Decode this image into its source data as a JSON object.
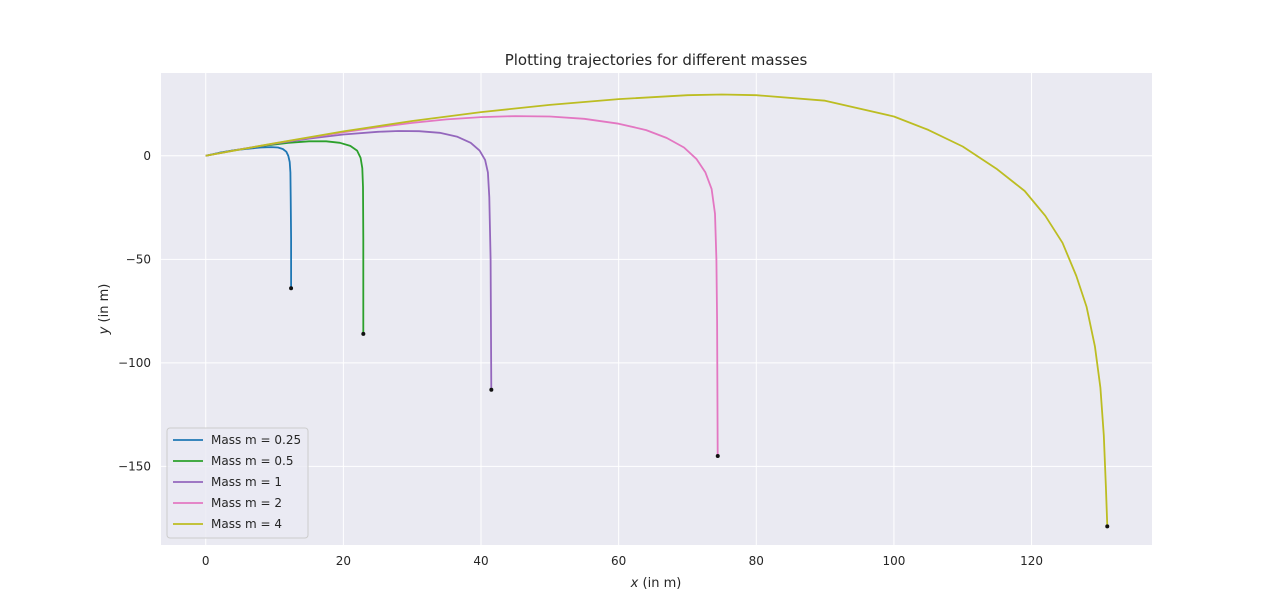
{
  "chart_data": {
    "type": "line",
    "title": "Plotting trajectories for different masses",
    "xlabel_var": "x",
    "xlabel_unit": " (in m)",
    "ylabel_var": "y",
    "ylabel_unit": " (in m)",
    "xlim": [
      -6.5,
      137.5
    ],
    "ylim": [
      -188,
      40
    ],
    "xticks": [
      0,
      20,
      40,
      60,
      80,
      100,
      120
    ],
    "yticks": [
      0,
      -50,
      -100,
      -150
    ],
    "ytick_labels": [
      "0",
      "−50",
      "−100",
      "−150"
    ],
    "grid": true,
    "background": "#eaeaf2",
    "legend_placement": "lower-left",
    "series": [
      {
        "name": "Mass m = 0.25",
        "color": "#1f77b4",
        "points": [
          [
            0,
            0
          ],
          [
            2,
            1.5
          ],
          [
            4,
            2.6
          ],
          [
            6,
            3.4
          ],
          [
            8,
            4.0
          ],
          [
            9.5,
            4.2
          ],
          [
            10.5,
            4.0
          ],
          [
            11.2,
            3.3
          ],
          [
            11.7,
            2
          ],
          [
            12.0,
            0
          ],
          [
            12.2,
            -3
          ],
          [
            12.3,
            -8
          ],
          [
            12.35,
            -20
          ],
          [
            12.4,
            -40
          ],
          [
            12.4,
            -64
          ]
        ],
        "end": [
          12.4,
          -64
        ]
      },
      {
        "name": "Mass m = 0.5",
        "color": "#2ca02c",
        "points": [
          [
            0,
            0
          ],
          [
            4,
            2.6
          ],
          [
            8,
            4.7
          ],
          [
            12,
            6.3
          ],
          [
            15,
            7.0
          ],
          [
            17.5,
            7.0
          ],
          [
            19.5,
            6.3
          ],
          [
            21,
            4.8
          ],
          [
            22,
            2.5
          ],
          [
            22.5,
            -1
          ],
          [
            22.75,
            -6
          ],
          [
            22.85,
            -15
          ],
          [
            22.9,
            -40
          ],
          [
            22.9,
            -86
          ]
        ],
        "end": [
          22.9,
          -86
        ]
      },
      {
        "name": "Mass m = 1",
        "color": "#9467bd",
        "points": [
          [
            0,
            0
          ],
          [
            5,
            3.1
          ],
          [
            10,
            5.9
          ],
          [
            15,
            8.3
          ],
          [
            20,
            10.3
          ],
          [
            25,
            11.6
          ],
          [
            28,
            12.0
          ],
          [
            31,
            11.9
          ],
          [
            34,
            11.1
          ],
          [
            36.5,
            9.3
          ],
          [
            38.5,
            6.3
          ],
          [
            39.8,
            2.5
          ],
          [
            40.6,
            -2
          ],
          [
            41.0,
            -8
          ],
          [
            41.2,
            -20
          ],
          [
            41.4,
            -50
          ],
          [
            41.5,
            -113
          ]
        ],
        "end": [
          41.5,
          -113
        ]
      },
      {
        "name": "Mass m = 2",
        "color": "#e377c2",
        "points": [
          [
            0,
            0
          ],
          [
            5,
            3.1
          ],
          [
            10,
            6
          ],
          [
            15,
            8.8
          ],
          [
            20,
            11.4
          ],
          [
            25,
            13.8
          ],
          [
            30,
            15.9
          ],
          [
            35,
            17.6
          ],
          [
            40,
            18.7
          ],
          [
            45,
            19.2
          ],
          [
            50,
            19.0
          ],
          [
            55,
            17.9
          ],
          [
            60,
            15.5
          ],
          [
            64,
            12.4
          ],
          [
            67,
            8.6
          ],
          [
            69.5,
            4.0
          ],
          [
            71.3,
            -1.5
          ],
          [
            72.6,
            -8
          ],
          [
            73.5,
            -16
          ],
          [
            74.0,
            -28
          ],
          [
            74.2,
            -50
          ],
          [
            74.3,
            -80
          ],
          [
            74.4,
            -145
          ]
        ],
        "end": [
          74.4,
          -145
        ]
      },
      {
        "name": "Mass m = 4",
        "color": "#bcbd22",
        "points": [
          [
            0,
            0
          ],
          [
            10,
            6.1
          ],
          [
            20,
            11.8
          ],
          [
            30,
            16.8
          ],
          [
            40,
            21.1
          ],
          [
            50,
            24.6
          ],
          [
            60,
            27.4
          ],
          [
            70,
            29.3
          ],
          [
            75,
            29.6
          ],
          [
            80,
            29.3
          ],
          [
            90,
            26.6
          ],
          [
            100,
            19.0
          ],
          [
            105,
            12.5
          ],
          [
            110,
            4.5
          ],
          [
            115,
            -6.5
          ],
          [
            119,
            -17
          ],
          [
            122,
            -29
          ],
          [
            124.5,
            -42
          ],
          [
            126.5,
            -58
          ],
          [
            128,
            -73
          ],
          [
            129.2,
            -92
          ],
          [
            130,
            -112
          ],
          [
            130.5,
            -135
          ],
          [
            130.8,
            -160
          ],
          [
            131,
            -179
          ]
        ],
        "end": [
          131,
          -179
        ]
      }
    ]
  }
}
